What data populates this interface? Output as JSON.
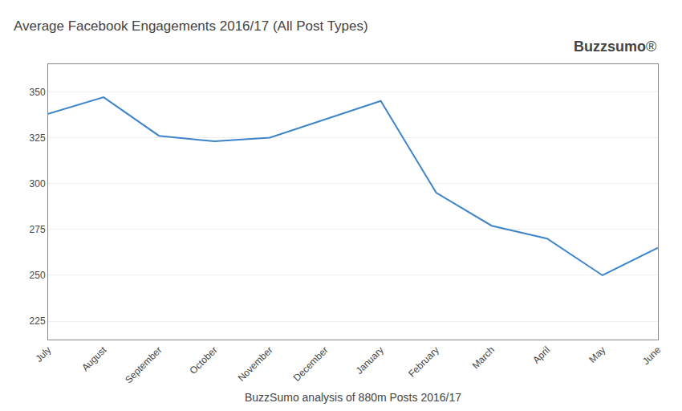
{
  "chart_data": {
    "type": "line",
    "title": "Average Facebook Engagements 2016/17 (All Post Types)",
    "xlabel": "BuzzSumo analysis of 880m Posts 2016/17",
    "annotations": [
      "Buzzsumo",
      "®"
    ],
    "categories": [
      "July",
      "August",
      "September",
      "October",
      "November",
      "December",
      "January",
      "February",
      "March",
      "April",
      "May",
      "June"
    ],
    "values": [
      338,
      347,
      326,
      323,
      325,
      335,
      345,
      295,
      277,
      270,
      250,
      265
    ],
    "color": "#3d85c8",
    "ylim": [
      215,
      365
    ],
    "yticks": [
      225,
      250,
      275,
      300,
      325,
      350
    ],
    "grid": true
  }
}
